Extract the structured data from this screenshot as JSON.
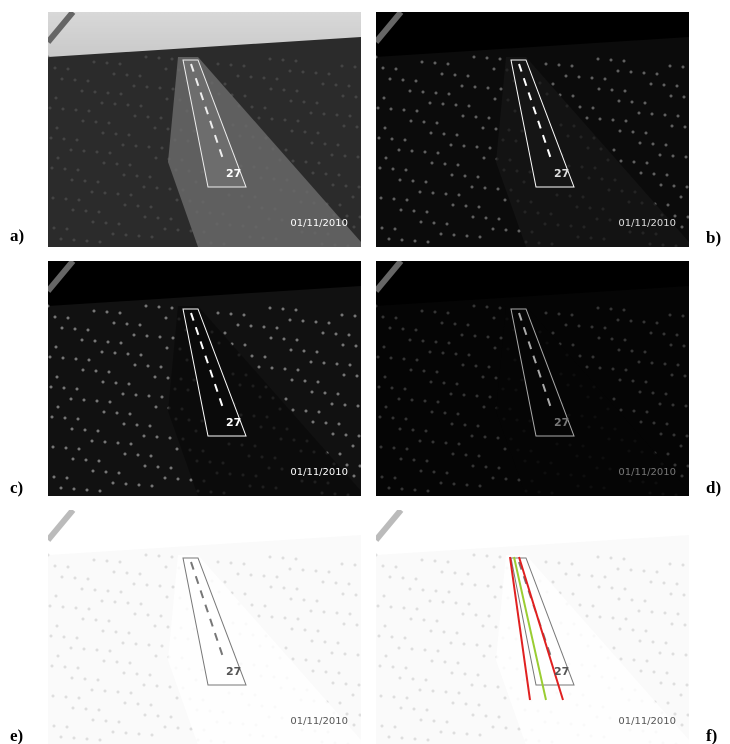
{
  "panels": [
    {
      "label": "a)",
      "runway_number": "27",
      "date": "01/11/2010"
    },
    {
      "label": "b)",
      "runway_number": "27",
      "date": "01/11/2010"
    },
    {
      "label": "c)",
      "runway_number": "27",
      "date": "01/11/2010"
    },
    {
      "label": "d)",
      "runway_number": "27",
      "date": "01/11/2010"
    },
    {
      "label": "e)",
      "runway_number": "27",
      "date": "01/11/2010"
    },
    {
      "label": "f)",
      "runway_number": "27",
      "date": "01/11/2010"
    }
  ]
}
